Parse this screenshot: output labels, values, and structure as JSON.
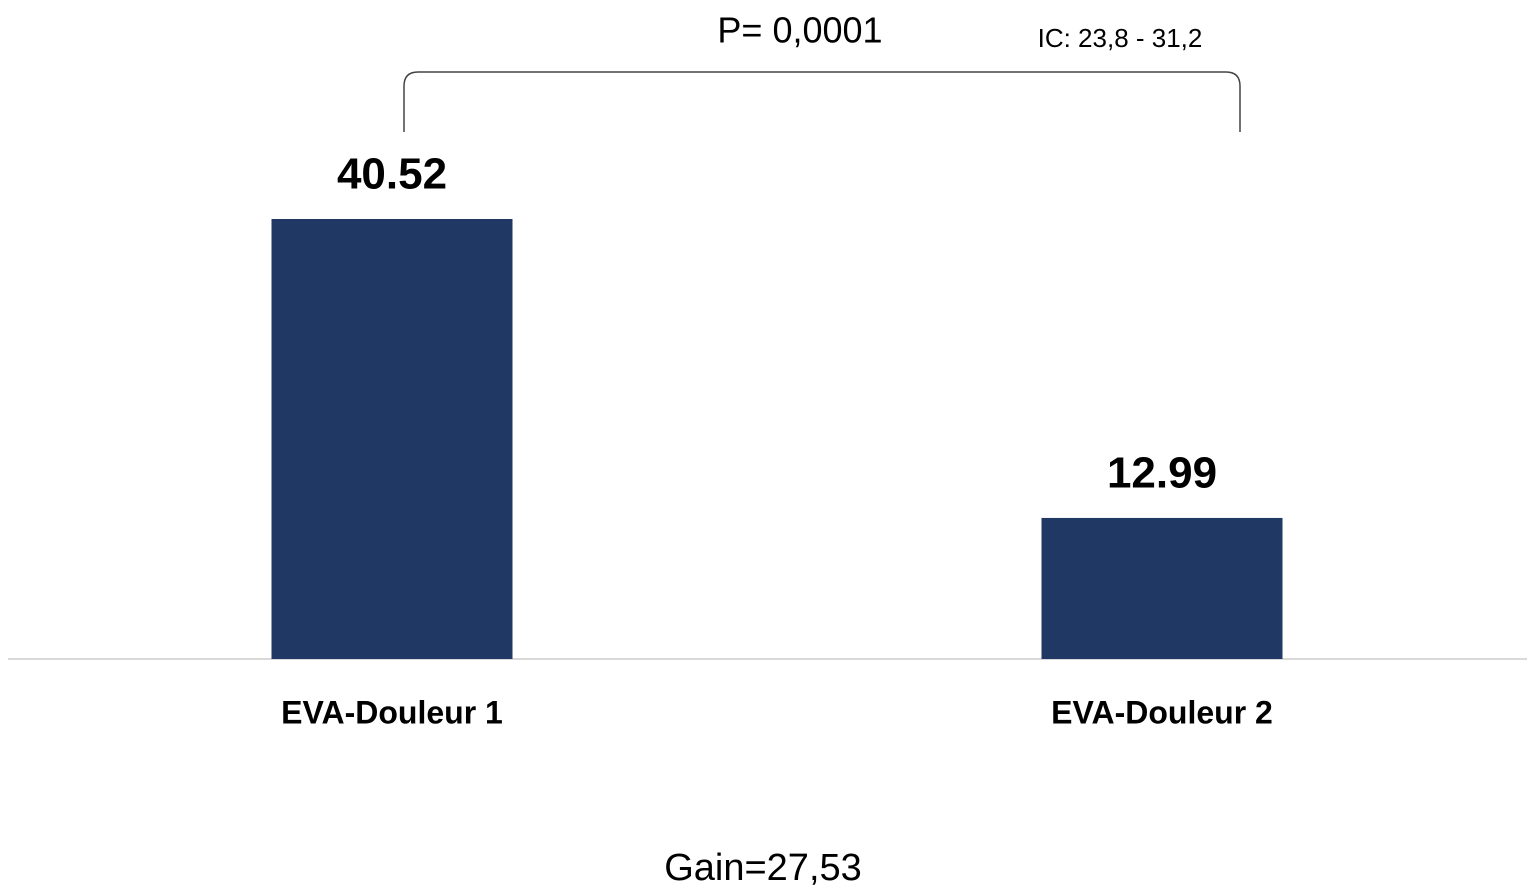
{
  "chart_data": {
    "type": "bar",
    "categories": [
      "EVA-Douleur 1",
      "EVA-Douleur 2"
    ],
    "values": [
      40.52,
      12.99
    ],
    "color": "#203864",
    "annotations": [
      "P= 0,0001",
      "IC: 23,8 - 31,2",
      "Gain=27,53"
    ]
  }
}
